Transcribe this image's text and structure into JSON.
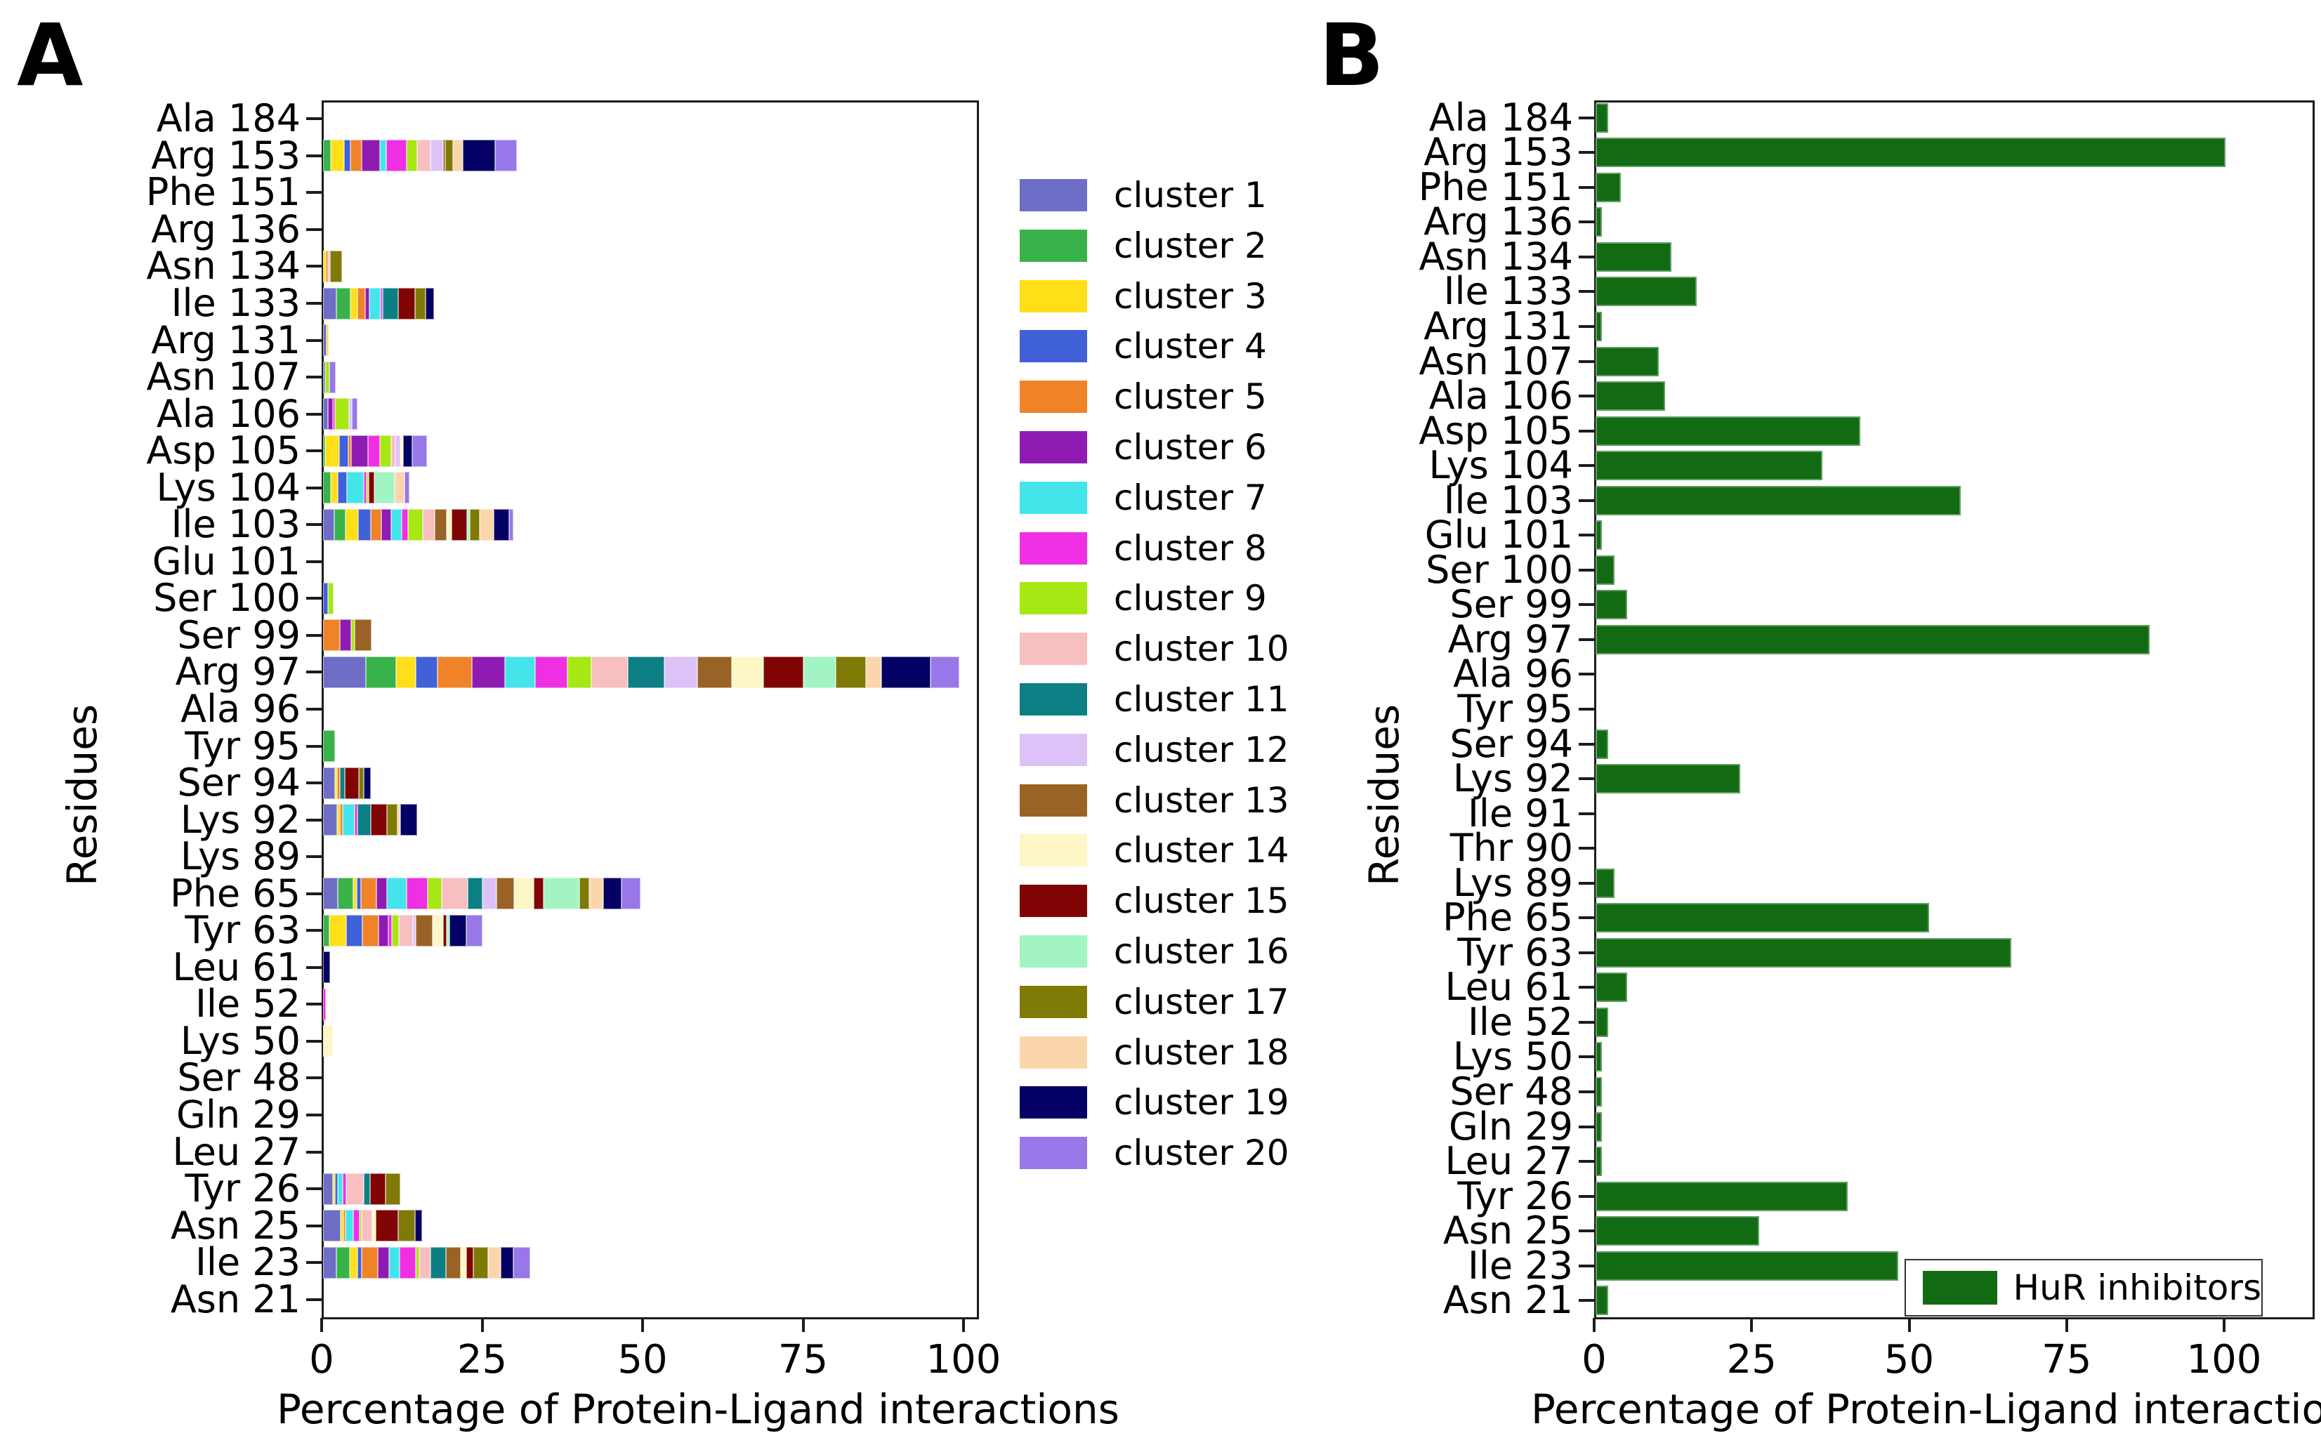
{
  "figure": {
    "panel_a_label": "A",
    "panel_b_label": "B"
  },
  "chart_data": [
    {
      "panel": "A",
      "type": "bar",
      "orientation": "horizontal",
      "stacked": true,
      "title": "",
      "xlabel": "Percentage of Protein-Ligand interactions",
      "ylabel": "Residues",
      "xlim": [
        0,
        102
      ],
      "xticks": [
        0,
        25,
        50,
        75,
        100
      ],
      "grid": false,
      "legend_position": "right-of-plot",
      "clusters": [
        {
          "label": "cluster 1",
          "color": "#6e6ec6"
        },
        {
          "label": "cluster 2",
          "color": "#39b24a"
        },
        {
          "label": "cluster 3",
          "color": "#ffdf18"
        },
        {
          "label": "cluster 4",
          "color": "#4161d8"
        },
        {
          "label": "cluster 5",
          "color": "#f08228"
        },
        {
          "label": "cluster 6",
          "color": "#8f1bb2"
        },
        {
          "label": "cluster 7",
          "color": "#43e5ea"
        },
        {
          "label": "cluster 8",
          "color": "#ef2fe4"
        },
        {
          "label": "cluster 9",
          "color": "#a7e713"
        },
        {
          "label": "cluster 10",
          "color": "#f8bfc0"
        },
        {
          "label": "cluster 11",
          "color": "#0c7f84"
        },
        {
          "label": "cluster 12",
          "color": "#ddc2f8"
        },
        {
          "label": "cluster 13",
          "color": "#9a6326"
        },
        {
          "label": "cluster 14",
          "color": "#fdf6c6"
        },
        {
          "label": "cluster 15",
          "color": "#810404"
        },
        {
          "label": "cluster 16",
          "color": "#a2f5c3"
        },
        {
          "label": "cluster 17",
          "color": "#7f7a06"
        },
        {
          "label": "cluster 18",
          "color": "#fbd6ab"
        },
        {
          "label": "cluster 19",
          "color": "#050063"
        },
        {
          "label": "cluster 20",
          "color": "#9878e8"
        }
      ],
      "categories": [
        "Ala 184",
        "Arg 153",
        "Phe 151",
        "Arg 136",
        "Asn 134",
        "Ile 133",
        "Arg 131",
        "Asn 107",
        "Ala 106",
        "Asp 105",
        "Lys 104",
        "Ile 103",
        "Glu 101",
        "Ser 100",
        "Ser 99",
        "Arg 97",
        "Ala 96",
        "Tyr 95",
        "Ser 94",
        "Lys 92",
        "Lys 89",
        "Phe 65",
        "Tyr 63",
        "Leu 61",
        "Ile 52",
        "Lys 50",
        "Ser 48",
        "Gln 29",
        "Leu 27",
        "Tyr 26",
        "Asn 25",
        "Ile 23",
        "Asn 21"
      ],
      "bars": [
        [],
        [
          [
            2,
            1.2
          ],
          [
            3,
            2.1
          ],
          [
            4,
            1.0
          ],
          [
            5,
            1.7
          ],
          [
            6,
            2.9
          ],
          [
            7,
            0.9
          ],
          [
            8,
            3.2
          ],
          [
            9,
            1.7
          ],
          [
            10,
            2.0
          ],
          [
            12,
            2.0
          ],
          [
            13,
            0.4
          ],
          [
            17,
            1.1
          ],
          [
            18,
            1.6
          ],
          [
            19,
            5.0
          ],
          [
            20,
            3.4
          ]
        ],
        [],
        [],
        [
          [
            3,
            0.4
          ],
          [
            5,
            0.4
          ],
          [
            10,
            0.3
          ],
          [
            17,
            1.8
          ]
        ],
        [
          [
            1,
            2.1
          ],
          [
            2,
            2.2
          ],
          [
            3,
            1.1
          ],
          [
            5,
            1.2
          ],
          [
            6,
            0.6
          ],
          [
            7,
            1.8
          ],
          [
            8,
            0.3
          ],
          [
            11,
            2.4
          ],
          [
            15,
            2.6
          ],
          [
            17,
            1.7
          ],
          [
            19,
            1.3
          ]
        ],
        [
          [
            1,
            0.5
          ],
          [
            3,
            0.2
          ]
        ],
        [
          [
            1,
            0.2
          ],
          [
            9,
            0.7
          ],
          [
            20,
            0.9
          ]
        ],
        [
          [
            1,
            0.8
          ],
          [
            6,
            0.7
          ],
          [
            8,
            0.3
          ],
          [
            9,
            2.2
          ],
          [
            12,
            0.5
          ],
          [
            20,
            0.8
          ]
        ],
        [
          [
            2,
            0.3
          ],
          [
            3,
            2.2
          ],
          [
            4,
            1.4
          ],
          [
            5,
            0.5
          ],
          [
            6,
            2.6
          ],
          [
            8,
            1.8
          ],
          [
            9,
            1.8
          ],
          [
            10,
            0.7
          ],
          [
            12,
            0.7
          ],
          [
            14,
            0.5
          ],
          [
            19,
            1.4
          ],
          [
            20,
            2.3
          ]
        ],
        [
          [
            2,
            1.2
          ],
          [
            3,
            1.1
          ],
          [
            4,
            1.4
          ],
          [
            7,
            2.6
          ],
          [
            8,
            0.5
          ],
          [
            9,
            0.3
          ],
          [
            15,
            0.9
          ],
          [
            16,
            3.1
          ],
          [
            18,
            1.6
          ],
          [
            20,
            0.7
          ]
        ],
        [
          [
            1,
            1.8
          ],
          [
            2,
            1.7
          ],
          [
            3,
            2.0
          ],
          [
            4,
            1.9
          ],
          [
            5,
            1.7
          ],
          [
            6,
            1.5
          ],
          [
            7,
            1.7
          ],
          [
            8,
            1.0
          ],
          [
            9,
            2.2
          ],
          [
            10,
            1.9
          ],
          [
            13,
            1.9
          ],
          [
            14,
            0.7
          ],
          [
            15,
            2.4
          ],
          [
            16,
            0.5
          ],
          [
            17,
            1.5
          ],
          [
            18,
            2.2
          ],
          [
            19,
            2.4
          ],
          [
            20,
            0.7
          ]
        ],
        [],
        [
          [
            4,
            0.8
          ],
          [
            9,
            0.8
          ]
        ],
        [
          [
            5,
            2.6
          ],
          [
            6,
            1.8
          ],
          [
            9,
            0.5
          ],
          [
            13,
            2.6
          ]
        ],
        [
          [
            1,
            6.7
          ],
          [
            2,
            4.7
          ],
          [
            3,
            3.0
          ],
          [
            4,
            3.4
          ],
          [
            5,
            5.4
          ],
          [
            6,
            5.1
          ],
          [
            7,
            4.7
          ],
          [
            8,
            5.1
          ],
          [
            9,
            3.7
          ],
          [
            10,
            5.7
          ],
          [
            11,
            5.7
          ],
          [
            12,
            5.1
          ],
          [
            13,
            5.4
          ],
          [
            14,
            4.9
          ],
          [
            15,
            6.2
          ],
          [
            16,
            5.1
          ],
          [
            17,
            4.7
          ],
          [
            18,
            2.4
          ],
          [
            19,
            7.7
          ],
          [
            20,
            4.4
          ]
        ],
        [],
        [
          [
            2,
            1.9
          ]
        ],
        [
          [
            1,
            1.9
          ],
          [
            3,
            0.3
          ],
          [
            5,
            0.4
          ],
          [
            11,
            0.8
          ],
          [
            15,
            2.2
          ],
          [
            17,
            0.7
          ],
          [
            19,
            1.1
          ]
        ],
        [
          [
            1,
            2.2
          ],
          [
            3,
            0.4
          ],
          [
            5,
            0.5
          ],
          [
            7,
            1.8
          ],
          [
            8,
            0.5
          ],
          [
            11,
            2.0
          ],
          [
            15,
            2.6
          ],
          [
            17,
            1.6
          ],
          [
            18,
            0.5
          ],
          [
            19,
            2.6
          ]
        ],
        [],
        [
          [
            1,
            2.3
          ],
          [
            2,
            2.4
          ],
          [
            3,
            0.6
          ],
          [
            4,
            0.6
          ],
          [
            5,
            2.4
          ],
          [
            6,
            1.7
          ],
          [
            7,
            3.0
          ],
          [
            8,
            3.3
          ],
          [
            9,
            2.2
          ],
          [
            10,
            4.0
          ],
          [
            11,
            2.4
          ],
          [
            12,
            2.1
          ],
          [
            13,
            2.8
          ],
          [
            14,
            3.0
          ],
          [
            15,
            1.6
          ],
          [
            16,
            5.5
          ],
          [
            17,
            1.6
          ],
          [
            18,
            2.2
          ],
          [
            19,
            2.8
          ],
          [
            20,
            3.0
          ]
        ],
        [
          [
            2,
            1.0
          ],
          [
            3,
            2.6
          ],
          [
            4,
            2.5
          ],
          [
            5,
            2.6
          ],
          [
            6,
            1.5
          ],
          [
            8,
            0.5
          ],
          [
            9,
            1.1
          ],
          [
            10,
            2.2
          ],
          [
            12,
            0.5
          ],
          [
            13,
            2.6
          ],
          [
            14,
            1.6
          ],
          [
            15,
            0.6
          ],
          [
            16,
            0.4
          ],
          [
            19,
            2.6
          ],
          [
            20,
            2.6
          ]
        ],
        [
          [
            19,
            1.1
          ]
        ],
        [
          [
            8,
            0.4
          ],
          [
            14,
            0.4
          ]
        ],
        [
          [
            14,
            1.5
          ]
        ],
        [],
        [],
        [],
        [
          [
            1,
            1.5
          ],
          [
            3,
            0.4
          ],
          [
            4,
            0.4
          ],
          [
            7,
            0.8
          ],
          [
            8,
            0.5
          ],
          [
            10,
            2.7
          ],
          [
            11,
            1.0
          ],
          [
            15,
            2.4
          ],
          [
            17,
            2.4
          ]
        ],
        [
          [
            1,
            2.7
          ],
          [
            3,
            0.45
          ],
          [
            5,
            0.4
          ],
          [
            7,
            1.2
          ],
          [
            8,
            0.9
          ],
          [
            9,
            0.4
          ],
          [
            10,
            1.6
          ],
          [
            14,
            0.6
          ],
          [
            15,
            3.5
          ],
          [
            17,
            2.6
          ],
          [
            19,
            1.1
          ]
        ],
        [
          [
            1,
            2.1
          ],
          [
            2,
            2.1
          ],
          [
            3,
            1.2
          ],
          [
            4,
            0.6
          ],
          [
            5,
            2.5
          ],
          [
            6,
            1.8
          ],
          [
            7,
            1.6
          ],
          [
            8,
            2.6
          ],
          [
            9,
            0.5
          ],
          [
            10,
            1.8
          ],
          [
            11,
            2.4
          ],
          [
            13,
            2.3
          ],
          [
            14,
            0.8
          ],
          [
            15,
            1.1
          ],
          [
            17,
            2.3
          ],
          [
            18,
            2.0
          ],
          [
            19,
            2.0
          ],
          [
            20,
            2.6
          ]
        ],
        []
      ]
    },
    {
      "panel": "B",
      "type": "bar",
      "orientation": "horizontal",
      "stacked": false,
      "title": "",
      "xlabel": "Percentage of Protein-Ligand interactions",
      "ylabel": "Residues",
      "xlim": [
        0,
        114
      ],
      "xticks": [
        0,
        25,
        50,
        75,
        100
      ],
      "grid": false,
      "series_label": "HuR inhibitors",
      "color": "#126b12",
      "legend_position": "lower-right-inside",
      "categories": [
        "Ala 184",
        "Arg 153",
        "Phe 151",
        "Arg 136",
        "Asn 134",
        "Ile 133",
        "Arg 131",
        "Asn 107",
        "Ala 106",
        "Asp 105",
        "Lys 104",
        "Ile 103",
        "Glu 101",
        "Ser 100",
        "Ser 99",
        "Arg 97",
        "Ala 96",
        "Tyr 95",
        "Ser 94",
        "Lys 92",
        "Ile 91",
        "Thr 90",
        "Lys 89",
        "Phe 65",
        "Tyr 63",
        "Leu 61",
        "Ile 52",
        "Lys 50",
        "Ser 48",
        "Gln 29",
        "Leu 27",
        "Tyr 26",
        "Asn 25",
        "Ile 23",
        "Asn 21"
      ],
      "values": [
        2,
        100,
        4,
        1,
        12,
        16,
        1,
        10,
        11,
        42,
        36,
        58,
        1,
        3,
        5,
        88,
        0,
        0,
        2,
        23,
        0,
        0,
        3,
        53,
        66,
        5,
        2,
        1,
        1,
        1,
        1,
        40,
        26,
        48,
        2
      ]
    }
  ]
}
